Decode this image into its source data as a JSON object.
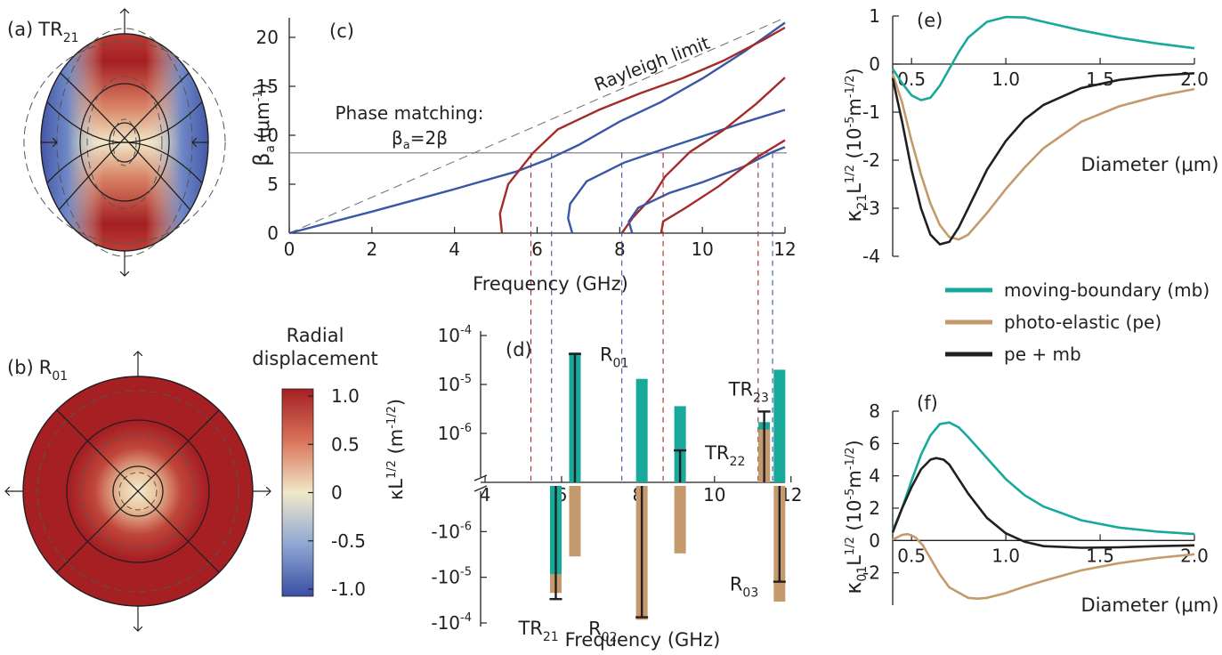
{
  "panels": {
    "a": {
      "letter": "(a)",
      "mode": "TR",
      "sub": "21"
    },
    "b": {
      "letter": "(b)",
      "mode": "R",
      "sub": "01"
    },
    "c": {
      "letter": "(c)"
    },
    "d": {
      "letter": "(d)"
    },
    "e": {
      "letter": "(e)"
    },
    "f": {
      "letter": "(f)"
    }
  },
  "colorbar": {
    "title_line1": "Radial",
    "title_line2": "displacement",
    "ticks": [
      "1.0",
      "0.5",
      "0",
      "-0.5",
      "-1.0"
    ],
    "colors": {
      "high": "#a51f23",
      "mid": "#f0e8c8",
      "low": "#3a4fa3"
    }
  },
  "legend": {
    "items": [
      {
        "label": "moving-boundary (mb)",
        "color": "#17a99a"
      },
      {
        "label": "photo-elastic (pe)",
        "color": "#c49a6c"
      },
      {
        "label": "pe + mb",
        "color": "#231f20"
      }
    ]
  },
  "colors": {
    "red": "#a52a2a",
    "blue": "#3a56a6",
    "teal": "#17a99a",
    "tan": "#c49a6c",
    "black": "#231f20",
    "gray": "#777777"
  },
  "chart_data": [
    {
      "panel": "c",
      "type": "line",
      "xlabel": "Frequency (GHz)",
      "ylabel_symbol": "β",
      "ylabel_sub": "a",
      "ylabel_unit": "(μm",
      "ylabel_unit_sup": "-1",
      "ylabel_unit_close": ")",
      "xlim": [
        0,
        12
      ],
      "ylim": [
        0,
        22
      ],
      "xticks": [
        "0",
        "2",
        "4",
        "6",
        "8",
        "10",
        "12"
      ],
      "yticks": [
        "0",
        "5",
        "10",
        "15",
        "20"
      ],
      "annotations": {
        "rayleigh": "Rayleigh limit",
        "phase_line1": "Phase matching:",
        "phase_symbol": "β",
        "phase_sub": "a",
        "phase_eq": "=2β"
      },
      "phase_matching_beta": 8.2,
      "rayleigh_slope": 1.85,
      "series": [
        {
          "color": "blue",
          "points": [
            [
              0,
              0
            ],
            [
              2,
              2.2
            ],
            [
              4,
              4.5
            ],
            [
              5.5,
              6.3
            ],
            [
              6.3,
              7.6
            ],
            [
              7,
              9
            ],
            [
              8,
              11.4
            ],
            [
              9,
              13.4
            ],
            [
              10,
              15.8
            ],
            [
              11,
              18.5
            ],
            [
              12,
              21.5
            ]
          ]
        },
        {
          "color": "red",
          "points": [
            [
              5.15,
              0
            ],
            [
              5.1,
              2
            ],
            [
              5.3,
              5
            ],
            [
              5.9,
              8.2
            ],
            [
              6.5,
              10.6
            ],
            [
              7.5,
              12.6
            ],
            [
              8.5,
              14.3
            ],
            [
              9.5,
              15.8
            ],
            [
              10.5,
              17.6
            ],
            [
              11.5,
              19.8
            ],
            [
              12,
              21
            ]
          ]
        },
        {
          "color": "blue",
          "points": [
            [
              6.85,
              0
            ],
            [
              6.75,
              1.5
            ],
            [
              6.8,
              3
            ],
            [
              7.2,
              5.3
            ],
            [
              8.1,
              7.2
            ],
            [
              9,
              8.5
            ],
            [
              10,
              9.9
            ],
            [
              11,
              11.3
            ],
            [
              12,
              12.6
            ]
          ]
        },
        {
          "color": "red",
          "points": [
            [
              8.05,
              0
            ],
            [
              8.3,
              1.5
            ],
            [
              8.8,
              3.8
            ],
            [
              9.1,
              5.8
            ],
            [
              9.7,
              8.3
            ],
            [
              10.5,
              10.5
            ],
            [
              11.3,
              13.2
            ],
            [
              12,
              15.9
            ]
          ]
        },
        {
          "color": "blue",
          "points": [
            [
              8.3,
              0
            ],
            [
              8.22,
              1.2
            ],
            [
              8.45,
              2.6
            ],
            [
              9.2,
              4.1
            ],
            [
              10,
              5.2
            ],
            [
              11,
              6.8
            ],
            [
              11.7,
              8.3
            ],
            [
              12,
              8.8
            ]
          ]
        },
        {
          "color": "red",
          "points": [
            [
              9.0,
              0
            ],
            [
              9.05,
              1.2
            ],
            [
              9.6,
              2.6
            ],
            [
              10.4,
              4.8
            ],
            [
              11.3,
              7.7
            ],
            [
              12,
              9.5
            ]
          ]
        }
      ],
      "crossings": [
        {
          "x": 5.85,
          "color": "red"
        },
        {
          "x": 6.35,
          "color": "blue"
        },
        {
          "x": 8.05,
          "color": "blue"
        },
        {
          "x": 9.05,
          "color": "red"
        },
        {
          "x": 11.35,
          "color": "red"
        },
        {
          "x": 11.7,
          "color": "blue"
        }
      ]
    },
    {
      "panel": "d",
      "type": "bar",
      "xlabel": "Frequency (GHz)",
      "ylabel_main": "κL",
      "ylabel_sup": "1/2",
      "ylabel_unit": "(m",
      "ylabel_unit_sup": "-1/2",
      "ylabel_unit_close": ")",
      "xlim": [
        4,
        12
      ],
      "xticks": [
        "4",
        "6",
        "8",
        "10",
        "12"
      ],
      "yticks_pos": [
        {
          "base": "10",
          "exp": "-4"
        },
        {
          "base": "10",
          "exp": "-5"
        },
        {
          "base": "10",
          "exp": "-6"
        }
      ],
      "yticks_neg": [
        {
          "base": "-10",
          "exp": "-6"
        },
        {
          "base": "-10",
          "exp": "-5"
        },
        {
          "base": "-10",
          "exp": "-4"
        }
      ],
      "bars": [
        {
          "mode": "TR",
          "sub": "21",
          "color": "red",
          "x": 5.85,
          "mb": -8.5e-06,
          "pe": -2.2e-05,
          "total": -3e-05
        },
        {
          "mode": "R",
          "sub": "01",
          "color": "blue",
          "x": 6.35,
          "mb": 4.5e-05,
          "pe": -3.5e-06,
          "total": 4.2e-05
        },
        {
          "mode": "R",
          "sub": "02",
          "color": "blue",
          "x": 8.1,
          "mb": 1.3e-05,
          "pe": -8.5e-05,
          "total": -7.5e-05
        },
        {
          "mode": "TR",
          "sub": "22",
          "color": "red",
          "x": 9.1,
          "mb": 3.6e-06,
          "pe": -3e-06,
          "total": 4.5e-07
        },
        {
          "mode": "TR",
          "sub": "23",
          "color": "red",
          "x": 11.3,
          "mb": 1.7e-06,
          "pe": 1.2e-06,
          "total": 2.8e-06
        },
        {
          "mode": "R",
          "sub": "03",
          "color": "blue",
          "x": 11.7,
          "mb": 2e-05,
          "pe": -3.4e-05,
          "total": -1.25e-05
        }
      ]
    },
    {
      "panel": "e",
      "type": "line",
      "xlabel": "Diameter (μm)",
      "ylabel_main": "κ",
      "ylabel_sub": "21",
      "ylabel_L": "L",
      "ylabel_sup": "1/2",
      "ylabel_unit": "(10",
      "ylabel_unit_sup": "-5",
      "ylabel_unit_rest": "m",
      "ylabel_unit_sup2": "-1/2",
      "ylabel_unit_close": ")",
      "xlim": [
        0.4,
        2.0
      ],
      "ylim": [
        -4,
        1
      ],
      "xticks": [
        "0.5",
        "1.0",
        "1.5",
        "2.0"
      ],
      "yticks": [
        "1",
        "0",
        "-1",
        "-2",
        "-3",
        "-4"
      ],
      "series": [
        {
          "name": "moving-boundary (mb)",
          "color": "teal",
          "points": [
            [
              0.4,
              -0.1
            ],
            [
              0.45,
              -0.4
            ],
            [
              0.5,
              -0.65
            ],
            [
              0.55,
              -0.75
            ],
            [
              0.6,
              -0.7
            ],
            [
              0.65,
              -0.45
            ],
            [
              0.7,
              -0.1
            ],
            [
              0.75,
              0.25
            ],
            [
              0.8,
              0.55
            ],
            [
              0.9,
              0.88
            ],
            [
              1.0,
              0.98
            ],
            [
              1.1,
              0.97
            ],
            [
              1.2,
              0.88
            ],
            [
              1.4,
              0.7
            ],
            [
              1.6,
              0.55
            ],
            [
              1.8,
              0.43
            ],
            [
              2.0,
              0.33
            ]
          ]
        },
        {
          "name": "photo-elastic (pe)",
          "color": "tan",
          "points": [
            [
              0.4,
              -0.2
            ],
            [
              0.45,
              -0.8
            ],
            [
              0.5,
              -1.6
            ],
            [
              0.55,
              -2.3
            ],
            [
              0.6,
              -2.9
            ],
            [
              0.65,
              -3.35
            ],
            [
              0.7,
              -3.6
            ],
            [
              0.75,
              -3.65
            ],
            [
              0.8,
              -3.55
            ],
            [
              0.9,
              -3.1
            ],
            [
              1.0,
              -2.6
            ],
            [
              1.1,
              -2.15
            ],
            [
              1.2,
              -1.75
            ],
            [
              1.4,
              -1.2
            ],
            [
              1.6,
              -0.88
            ],
            [
              1.8,
              -0.67
            ],
            [
              2.0,
              -0.52
            ]
          ]
        },
        {
          "name": "pe + mb",
          "color": "black",
          "points": [
            [
              0.4,
              -0.3
            ],
            [
              0.45,
              -1.2
            ],
            [
              0.5,
              -2.2
            ],
            [
              0.55,
              -3.0
            ],
            [
              0.6,
              -3.55
            ],
            [
              0.65,
              -3.75
            ],
            [
              0.7,
              -3.7
            ],
            [
              0.75,
              -3.4
            ],
            [
              0.8,
              -3.0
            ],
            [
              0.9,
              -2.2
            ],
            [
              1.0,
              -1.6
            ],
            [
              1.1,
              -1.15
            ],
            [
              1.2,
              -0.85
            ],
            [
              1.4,
              -0.5
            ],
            [
              1.6,
              -0.33
            ],
            [
              1.8,
              -0.24
            ],
            [
              2.0,
              -0.19
            ]
          ]
        }
      ]
    },
    {
      "panel": "f",
      "type": "line",
      "xlabel": "Diameter (μm)",
      "ylabel_main": "κ",
      "ylabel_sub": "01",
      "ylabel_L": "L",
      "ylabel_sup": "1/2",
      "ylabel_unit": "(10",
      "ylabel_unit_sup": "-5",
      "ylabel_unit_rest": "m",
      "ylabel_unit_sup2": "-1/2",
      "ylabel_unit_close": ")",
      "xlim": [
        0.4,
        2.0
      ],
      "ylim": [
        -4,
        8
      ],
      "xticks": [
        "0.5",
        "1.0",
        "1.5",
        "2.0"
      ],
      "yticks": [
        "8",
        "6",
        "4",
        "2",
        "0",
        "-2"
      ],
      "series": [
        {
          "name": "moving-boundary (mb)",
          "color": "teal",
          "points": [
            [
              0.4,
              0.6
            ],
            [
              0.45,
              2.0
            ],
            [
              0.5,
              3.7
            ],
            [
              0.55,
              5.3
            ],
            [
              0.6,
              6.5
            ],
            [
              0.65,
              7.2
            ],
            [
              0.7,
              7.3
            ],
            [
              0.75,
              7.0
            ],
            [
              0.8,
              6.4
            ],
            [
              0.9,
              5.1
            ],
            [
              1.0,
              3.8
            ],
            [
              1.1,
              2.8
            ],
            [
              1.2,
              2.1
            ],
            [
              1.4,
              1.25
            ],
            [
              1.6,
              0.8
            ],
            [
              1.8,
              0.55
            ],
            [
              2.0,
              0.4
            ]
          ]
        },
        {
          "name": "photo-elastic (pe)",
          "color": "tan",
          "points": [
            [
              0.4,
              0.05
            ],
            [
              0.45,
              0.35
            ],
            [
              0.48,
              0.4
            ],
            [
              0.52,
              0.2
            ],
            [
              0.56,
              -0.3
            ],
            [
              0.6,
              -1.1
            ],
            [
              0.65,
              -2.1
            ],
            [
              0.7,
              -2.9
            ],
            [
              0.8,
              -3.55
            ],
            [
              0.85,
              -3.6
            ],
            [
              0.9,
              -3.55
            ],
            [
              1.0,
              -3.25
            ],
            [
              1.1,
              -2.85
            ],
            [
              1.2,
              -2.5
            ],
            [
              1.4,
              -1.85
            ],
            [
              1.6,
              -1.4
            ],
            [
              1.8,
              -1.08
            ],
            [
              2.0,
              -0.85
            ]
          ]
        },
        {
          "name": "pe + mb",
          "color": "black",
          "points": [
            [
              0.4,
              0.5
            ],
            [
              0.45,
              2.0
            ],
            [
              0.5,
              3.3
            ],
            [
              0.55,
              4.4
            ],
            [
              0.6,
              5.0
            ],
            [
              0.63,
              5.1
            ],
            [
              0.67,
              5.0
            ],
            [
              0.7,
              4.7
            ],
            [
              0.75,
              3.8
            ],
            [
              0.8,
              2.9
            ],
            [
              0.9,
              1.4
            ],
            [
              1.0,
              0.45
            ],
            [
              1.1,
              -0.08
            ],
            [
              1.2,
              -0.35
            ],
            [
              1.4,
              -0.45
            ],
            [
              1.6,
              -0.42
            ],
            [
              1.8,
              -0.35
            ],
            [
              2.0,
              -0.3
            ]
          ]
        }
      ]
    }
  ]
}
